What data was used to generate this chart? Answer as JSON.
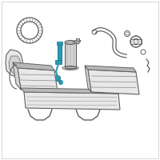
{
  "bg_color": "#ffffff",
  "border_color": "#d0d0d0",
  "line_color": "#606060",
  "blue_color": "#2a9ab5",
  "blue_dark": "#1a7a90",
  "gray_fill": "#d4d4d4",
  "gray_mid": "#b8b8b8",
  "gray_light": "#e8e8e8",
  "figsize": [
    2.0,
    2.0
  ],
  "dpi": 100
}
